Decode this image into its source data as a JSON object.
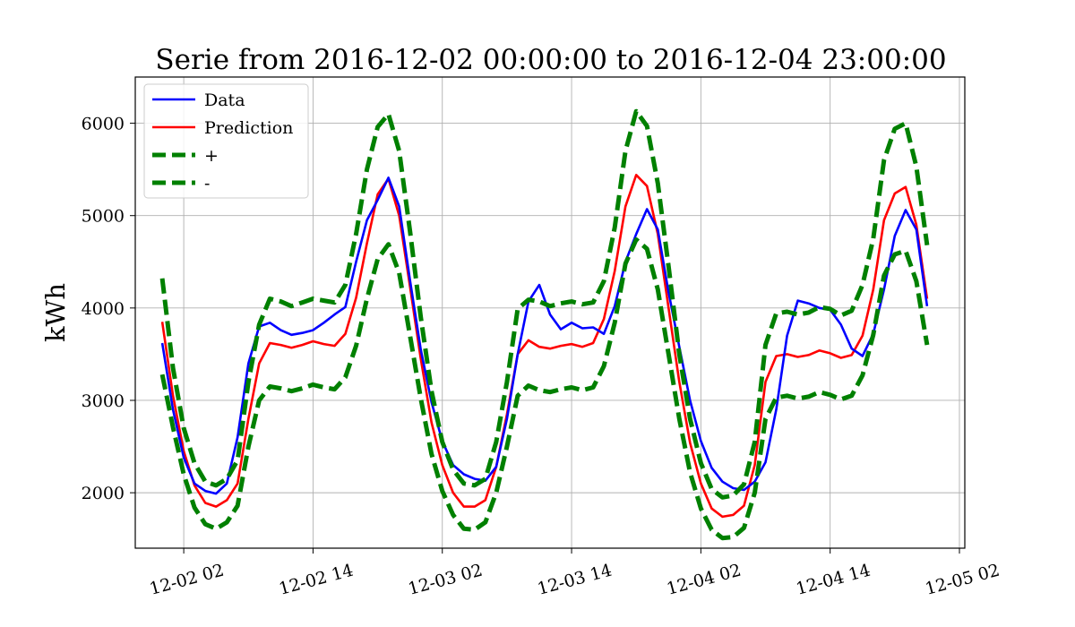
{
  "chart_data": {
    "type": "line",
    "title": "Serie from 2016-12-02 00:00:00 to 2016-12-04 23:00:00",
    "xlabel": "",
    "ylabel": "kWh",
    "x_start": "2016-12-02 00:00:00",
    "x_end": "2016-12-04 23:00:00",
    "x_step": "1 hour",
    "xlim": [
      "2016-12-01 21:30",
      "2016-12-05 02:30"
    ],
    "ylim": [
      1400,
      6500
    ],
    "grid": true,
    "legend_position": "top-left",
    "x_ticks": [
      {
        "value": "2016-12-02 02:00",
        "label": "12-02 02"
      },
      {
        "value": "2016-12-02 14:00",
        "label": "12-02 14"
      },
      {
        "value": "2016-12-03 02:00",
        "label": "12-03 02"
      },
      {
        "value": "2016-12-03 14:00",
        "label": "12-03 14"
      },
      {
        "value": "2016-12-04 02:00",
        "label": "12-04 02"
      },
      {
        "value": "2016-12-04 14:00",
        "label": "12-04 14"
      },
      {
        "value": "2016-12-05 02:00",
        "label": "12-05 02"
      }
    ],
    "y_ticks": [
      {
        "value": 2000,
        "label": "2000"
      },
      {
        "value": 3000,
        "label": "3000"
      },
      {
        "value": 4000,
        "label": "4000"
      },
      {
        "value": 5000,
        "label": "5000"
      },
      {
        "value": 6000,
        "label": "6000"
      }
    ],
    "series": [
      {
        "name": "Data",
        "color": "#0000ff",
        "style": "solid",
        "values": [
          3620,
          2900,
          2380,
          2100,
          2020,
          1990,
          2100,
          2600,
          3400,
          3800,
          3840,
          3760,
          3710,
          3730,
          3760,
          3840,
          3930,
          4010,
          4500,
          4950,
          5170,
          5410,
          5100,
          4300,
          3550,
          2980,
          2560,
          2300,
          2200,
          2150,
          2130,
          2280,
          2800,
          3500,
          4070,
          4250,
          3930,
          3770,
          3840,
          3780,
          3790,
          3720,
          4020,
          4500,
          4800,
          5070,
          4850,
          4170,
          3580,
          3000,
          2560,
          2270,
          2120,
          2050,
          2030,
          2120,
          2330,
          2900,
          3700,
          4080,
          4050,
          4000,
          3980,
          3820,
          3560,
          3480,
          3720,
          4200,
          4780,
          5060,
          4850,
          4020
        ]
      },
      {
        "name": "Prediction",
        "color": "#ff0000",
        "style": "solid",
        "values": [
          3850,
          3050,
          2450,
          2080,
          1890,
          1850,
          1920,
          2100,
          2800,
          3400,
          3620,
          3600,
          3570,
          3600,
          3640,
          3610,
          3590,
          3720,
          4110,
          4700,
          5230,
          5400,
          5000,
          4230,
          3450,
          2760,
          2300,
          2000,
          1850,
          1850,
          1920,
          2280,
          2850,
          3500,
          3650,
          3580,
          3560,
          3590,
          3610,
          3580,
          3620,
          3880,
          4400,
          5100,
          5440,
          5320,
          4800,
          4000,
          3200,
          2540,
          2100,
          1830,
          1740,
          1760,
          1860,
          2300,
          3200,
          3480,
          3500,
          3470,
          3490,
          3540,
          3510,
          3460,
          3490,
          3700,
          4200,
          4950,
          5240,
          5310,
          4900,
          4100
        ]
      },
      {
        "name": "+",
        "color": "#008000",
        "style": "dashed",
        "values": [
          4320,
          3350,
          2700,
          2320,
          2120,
          2080,
          2150,
          2350,
          3200,
          3820,
          4100,
          4070,
          4020,
          4060,
          4100,
          4080,
          4060,
          4250,
          4800,
          5500,
          5960,
          6100,
          5700,
          4830,
          3900,
          3100,
          2550,
          2250,
          2100,
          2080,
          2150,
          2550,
          3200,
          3990,
          4090,
          4070,
          4020,
          4050,
          4070,
          4040,
          4060,
          4290,
          4870,
          5700,
          6130,
          5970,
          5350,
          4450,
          3500,
          2800,
          2320,
          2040,
          1950,
          1970,
          2090,
          2550,
          3600,
          3940,
          3960,
          3930,
          3950,
          4010,
          3990,
          3920,
          3970,
          4250,
          4750,
          5600,
          5940,
          6000,
          5530,
          4680
        ]
      },
      {
        "name": "-",
        "color": "#008000",
        "style": "dashed",
        "values": [
          3280,
          2710,
          2200,
          1840,
          1660,
          1610,
          1680,
          1860,
          2500,
          3000,
          3150,
          3130,
          3100,
          3130,
          3170,
          3140,
          3120,
          3250,
          3590,
          4100,
          4530,
          4690,
          4380,
          3700,
          3020,
          2420,
          2020,
          1760,
          1610,
          1600,
          1680,
          2000,
          2500,
          3050,
          3160,
          3110,
          3090,
          3120,
          3140,
          3110,
          3140,
          3370,
          3840,
          4480,
          4740,
          4640,
          4200,
          3500,
          2800,
          2220,
          1830,
          1600,
          1510,
          1520,
          1620,
          2000,
          2800,
          3030,
          3050,
          3020,
          3040,
          3090,
          3060,
          3010,
          3050,
          3270,
          3710,
          4350,
          4580,
          4620,
          4290,
          3600
        ]
      }
    ]
  }
}
